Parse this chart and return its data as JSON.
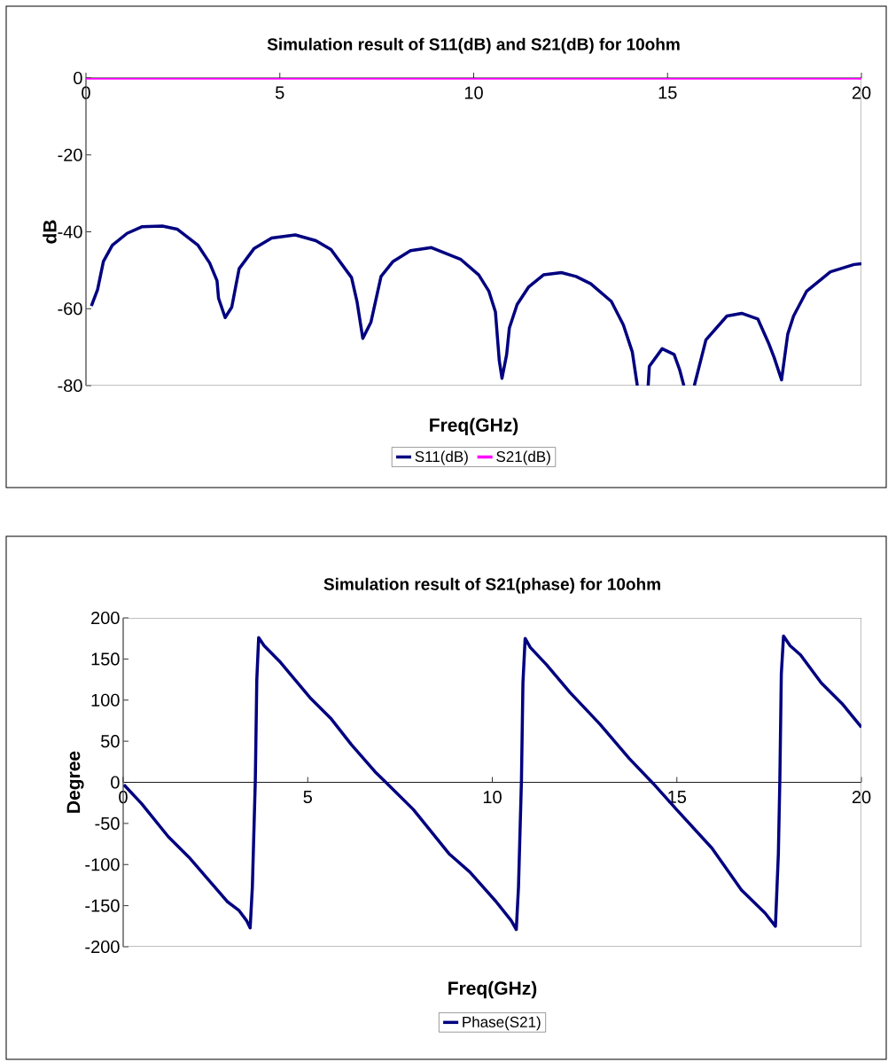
{
  "chart_data": [
    {
      "type": "line",
      "title": "Simulation result of S11(dB) and S21(dB) for 10ohm",
      "xlabel": "Freq(GHz)",
      "ylabel": "dB",
      "xlim": [
        0,
        20
      ],
      "ylim": [
        -80,
        0
      ],
      "xticks": [
        0,
        5,
        10,
        15,
        20
      ],
      "yticks": [
        -80,
        -60,
        -40,
        -20,
        0
      ],
      "legend": "bottom",
      "line_style": "solid",
      "series": [
        {
          "name": "S11(dB)",
          "color": "#000080",
          "x": [
            0.14,
            0.3,
            0.45,
            0.68,
            1.06,
            1.44,
            1.97,
            2.35,
            2.89,
            3.19,
            3.38,
            3.42,
            3.59,
            3.76,
            3.95,
            4.34,
            4.79,
            5.4,
            5.93,
            6.32,
            6.85,
            6.99,
            7.14,
            7.35,
            7.61,
            7.92,
            8.37,
            8.91,
            9.67,
            10.13,
            10.39,
            10.56,
            10.66,
            10.73,
            10.85,
            10.92,
            11.12,
            11.42,
            11.8,
            12.26,
            12.64,
            13.02,
            13.55,
            13.86,
            14.09,
            14.22,
            14.36,
            14.5,
            14.53,
            14.86,
            15.17,
            15.31,
            15.42,
            15.55,
            15.69,
            15.99,
            16.53,
            16.91,
            17.33,
            17.6,
            17.75,
            17.94,
            18.1,
            18.25,
            18.59,
            19.2,
            19.81,
            20
          ],
          "values": [
            -59.3,
            -55,
            -47.7,
            -43.5,
            -40.4,
            -38.7,
            -38.5,
            -39.3,
            -43.5,
            -48.1,
            -52.7,
            -57.3,
            -62.3,
            -59.6,
            -49.6,
            -44.3,
            -41.6,
            -40.8,
            -42.3,
            -44.6,
            -51.9,
            -58.1,
            -67.7,
            -63.5,
            -51.6,
            -47.7,
            -44.9,
            -44.1,
            -47.2,
            -51.2,
            -55.4,
            -60.8,
            -73.5,
            -78.1,
            -71.9,
            -65,
            -58.9,
            -54.3,
            -51.2,
            -50.6,
            -51.6,
            -53.5,
            -58.1,
            -64.2,
            -71.2,
            -80,
            null,
            -80,
            -75,
            -70.4,
            -71.9,
            -75.8,
            -80,
            null,
            -80,
            -68.1,
            -61.9,
            -61.2,
            -62.7,
            -68.8,
            -72.7,
            -78.5,
            -66.6,
            -61.9,
            -55.4,
            -50.4,
            -48.5,
            -48.3
          ]
        },
        {
          "name": "S21(dB)",
          "color": "#ff00ff",
          "x": [
            0,
            20
          ],
          "values": [
            0,
            0
          ]
        }
      ]
    },
    {
      "type": "line",
      "title": "Simulation result of S21(phase) for 10ohm",
      "xlabel": "Freq(GHz)",
      "ylabel": "Degree",
      "xlim": [
        0,
        20
      ],
      "ylim": [
        -200,
        200
      ],
      "xticks": [
        0,
        5,
        10,
        15,
        20
      ],
      "yticks": [
        -200,
        -150,
        -100,
        -50,
        0,
        50,
        100,
        150,
        200
      ],
      "legend": "bottom",
      "line_style": "solid",
      "series": [
        {
          "name": "Phase(S21)",
          "color": "#000080",
          "x": [
            0.02,
            0.5,
            1.22,
            1.78,
            2.34,
            2.82,
            3.14,
            3.34,
            3.44,
            3.5,
            3.58,
            3.62,
            3.67,
            3.82,
            4.26,
            5.06,
            5.62,
            6.18,
            6.82,
            7.14,
            7.86,
            8.83,
            9.39,
            10.1,
            10.51,
            10.65,
            10.71,
            10.79,
            10.83,
            10.89,
            11.03,
            11.47,
            12.11,
            12.91,
            13.71,
            14.35,
            14.99,
            15.95,
            16.75,
            17.39,
            17.67,
            17.75,
            17.79,
            17.83,
            17.89,
            18.07,
            18.35,
            18.91,
            19.47,
            20
          ],
          "values": [
            -3,
            -26,
            -66,
            -91,
            -120,
            -145,
            -156,
            -168,
            -177,
            -127,
            3,
            125,
            176,
            166,
            146,
            103,
            78,
            46,
            13,
            -1,
            -33,
            -87,
            -109,
            -145,
            -168,
            -179,
            -127,
            3,
            121,
            175,
            164,
            143,
            109,
            71,
            29,
            -1,
            -33,
            -80,
            -131,
            -159,
            -175,
            -87,
            3,
            132,
            178,
            166,
            155,
            121,
            96,
            67
          ]
        }
      ]
    }
  ]
}
